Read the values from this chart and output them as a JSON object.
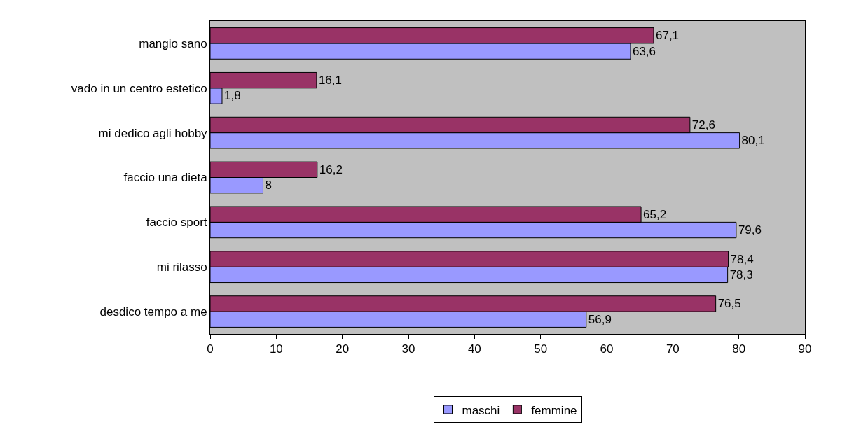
{
  "chart_data": {
    "type": "bar",
    "orientation": "horizontal",
    "categories": [
      "mangio sano",
      "vado in un centro estetico",
      "mi dedico agli hobby",
      "faccio una dieta",
      "faccio sport",
      "mi rilasso",
      "desdico tempo a me"
    ],
    "series": [
      {
        "name": "maschi",
        "color": "#9999ff",
        "values": [
          63.6,
          1.8,
          80.1,
          8,
          79.6,
          78.3,
          56.9
        ],
        "value_labels": [
          "63,6",
          "1,8",
          "80,1",
          "8",
          "79,6",
          "78,3",
          "56,9"
        ]
      },
      {
        "name": "femmine",
        "color": "#993366",
        "values": [
          67.1,
          16.1,
          72.6,
          16.2,
          65.2,
          78.4,
          76.5
        ],
        "value_labels": [
          "67,1",
          "16,1",
          "72,6",
          "16,2",
          "65,2",
          "78,4",
          "76,5"
        ]
      }
    ],
    "xlim": [
      0,
      90
    ],
    "xticks": [
      0,
      10,
      20,
      30,
      40,
      50,
      60,
      70,
      80,
      90
    ],
    "grid": false,
    "legend": "bottom"
  }
}
